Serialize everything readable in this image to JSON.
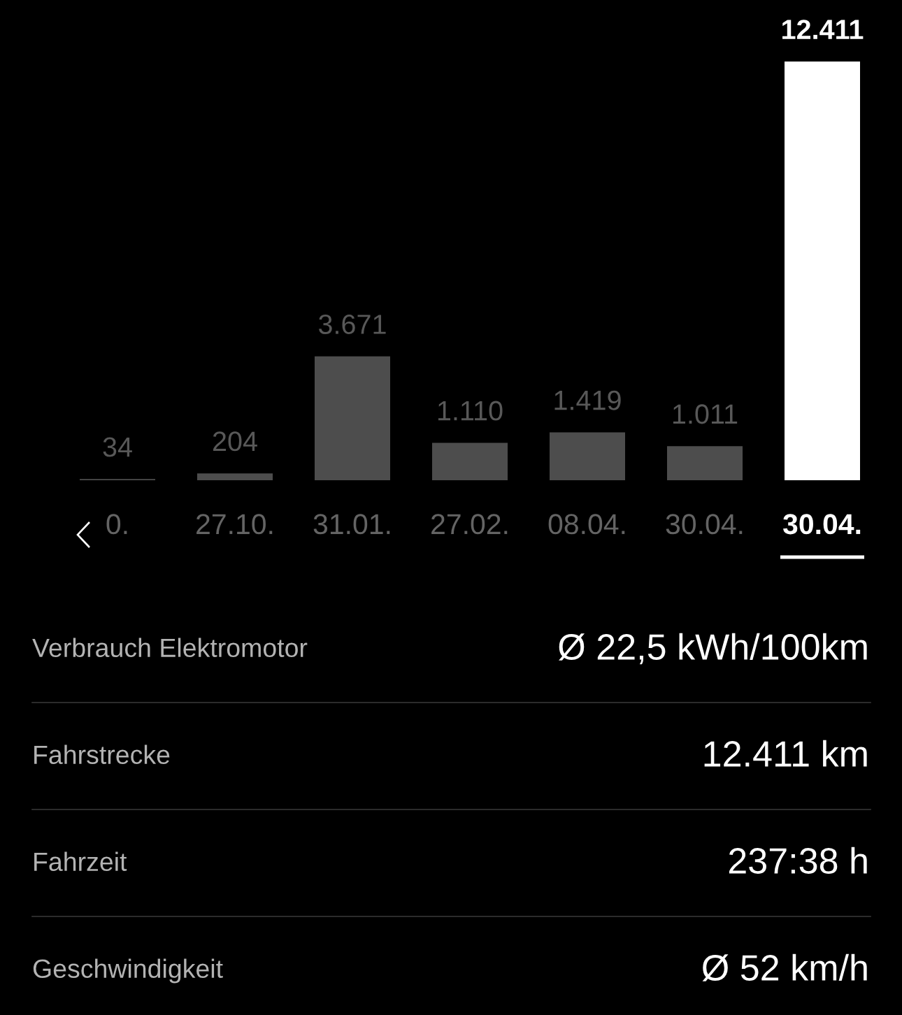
{
  "chart_data": [
    {
      "type": "bar",
      "categories": [
        "0.",
        "27.10.",
        "31.01.",
        "27.02.",
        "08.04.",
        "30.04.",
        "30.04."
      ],
      "values": [
        34,
        204,
        3671,
        1110,
        1419,
        1011,
        12411
      ],
      "value_labels": [
        "34",
        "204",
        "3.671",
        "1.110",
        "1.419",
        "1.011",
        "12.411"
      ],
      "colors": [
        "#4d4d4d",
        "#4d4d4d",
        "#4d4d4d",
        "#4d4d4d",
        "#4d4d4d",
        "#4d4d4d",
        "#ffffff"
      ],
      "ylim": [
        0,
        12411
      ],
      "tick_labels": "x"
    },
    {
      "type": "other",
      "annotations": [
        "Verbrauch Elektromotor",
        "Ø 22,5 kWh/100km",
        "Fahrstrecke",
        "12.411 km",
        "Fahrzeit",
        "237:38 h",
        "Geschwindigkeit",
        "Ø 52 km/h"
      ]
    }
  ]
}
